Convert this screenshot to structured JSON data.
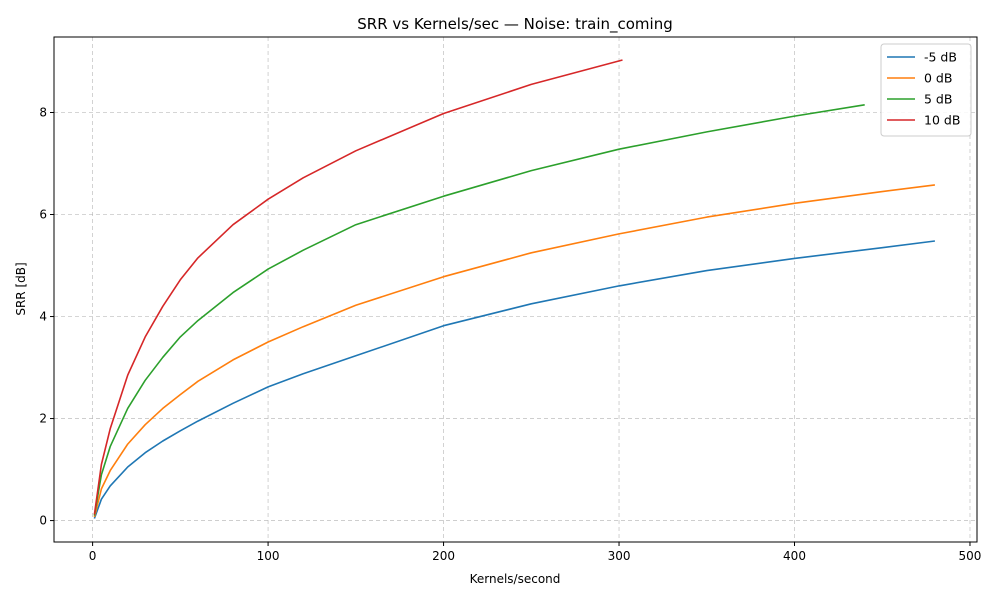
{
  "chart_data": {
    "type": "line",
    "title": "SRR vs Kernels/sec — Noise: train_coming",
    "xlabel": "Kernels/second",
    "ylabel": "SRR [dB]",
    "xlim": [
      -22,
      504
    ],
    "ylim": [
      -0.42,
      9.48
    ],
    "xticks": [
      0,
      100,
      200,
      300,
      400,
      500
    ],
    "yticks": [
      0,
      2,
      4,
      6,
      8
    ],
    "grid": true,
    "legend_position": "top-right",
    "series": [
      {
        "name": "-5 dB",
        "color": "#1f77b4",
        "x": [
          1,
          5,
          10,
          20,
          30,
          40,
          50,
          60,
          80,
          100,
          120,
          150,
          200,
          250,
          300,
          350,
          400,
          450,
          480
        ],
        "y": [
          0.04,
          0.42,
          0.68,
          1.05,
          1.33,
          1.56,
          1.76,
          1.95,
          2.3,
          2.62,
          2.88,
          3.23,
          3.82,
          4.25,
          4.6,
          4.9,
          5.14,
          5.35,
          5.48
        ]
      },
      {
        "name": "0 dB",
        "color": "#ff7f0e",
        "x": [
          1,
          5,
          10,
          20,
          30,
          40,
          50,
          60,
          80,
          100,
          120,
          150,
          200,
          250,
          300,
          350,
          400,
          450,
          480
        ],
        "y": [
          0.07,
          0.62,
          0.98,
          1.5,
          1.88,
          2.2,
          2.47,
          2.73,
          3.15,
          3.5,
          3.8,
          4.22,
          4.78,
          5.25,
          5.62,
          5.95,
          6.22,
          6.45,
          6.58
        ]
      },
      {
        "name": "5 dB",
        "color": "#2ca02c",
        "x": [
          1,
          5,
          10,
          20,
          30,
          40,
          50,
          60,
          80,
          100,
          120,
          150,
          200,
          250,
          300,
          350,
          400,
          440
        ],
        "y": [
          0.1,
          0.9,
          1.45,
          2.2,
          2.75,
          3.2,
          3.6,
          3.92,
          4.47,
          4.93,
          5.3,
          5.8,
          6.36,
          6.86,
          7.28,
          7.62,
          7.93,
          8.15
        ]
      },
      {
        "name": "10 dB",
        "color": "#d62728",
        "x": [
          1,
          5,
          10,
          20,
          30,
          40,
          50,
          60,
          80,
          100,
          120,
          150,
          200,
          250,
          302
        ],
        "y": [
          0.12,
          1.1,
          1.8,
          2.85,
          3.6,
          4.2,
          4.72,
          5.15,
          5.8,
          6.3,
          6.72,
          7.25,
          7.98,
          8.55,
          9.03
        ]
      }
    ]
  }
}
